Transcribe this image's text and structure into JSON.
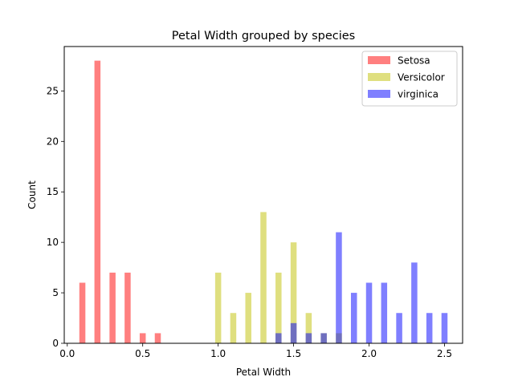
{
  "chart_data": {
    "type": "bar",
    "title": "Petal Width grouped by species",
    "xlabel": "Petal Width",
    "ylabel": "Count",
    "xlim": [
      -0.02,
      2.62
    ],
    "ylim": [
      0,
      29.4
    ],
    "xticks": [
      0.0,
      0.5,
      1.0,
      1.5,
      2.0,
      2.5
    ],
    "xtick_labels": [
      "0.0",
      "0.5",
      "1.0",
      "1.5",
      "2.0",
      "2.5"
    ],
    "yticks": [
      0,
      5,
      10,
      15,
      20,
      25
    ],
    "ytick_labels": [
      "0",
      "5",
      "10",
      "15",
      "20",
      "25"
    ],
    "grid": false,
    "legend_position": "top-right",
    "series": [
      {
        "name": "Setosa",
        "color": "#ff0000",
        "alpha": 0.5,
        "x": [
          0.1,
          0.2,
          0.3,
          0.4,
          0.5,
          0.6
        ],
        "values": [
          6,
          28,
          7,
          7,
          1,
          1
        ]
      },
      {
        "name": "Versicolor",
        "color": "#bfbf00",
        "alpha": 0.5,
        "x": [
          1.0,
          1.1,
          1.2,
          1.3,
          1.4,
          1.5,
          1.6,
          1.7,
          1.8
        ],
        "values": [
          7,
          3,
          5,
          13,
          7,
          10,
          3,
          1,
          1
        ]
      },
      {
        "name": "virginica",
        "color": "#0000ff",
        "alpha": 0.5,
        "x": [
          1.4,
          1.5,
          1.6,
          1.7,
          1.8,
          1.9,
          2.0,
          2.1,
          2.2,
          2.3,
          2.4,
          2.5
        ],
        "values": [
          1,
          2,
          1,
          1,
          11,
          5,
          6,
          6,
          3,
          8,
          3,
          3
        ]
      }
    ]
  }
}
